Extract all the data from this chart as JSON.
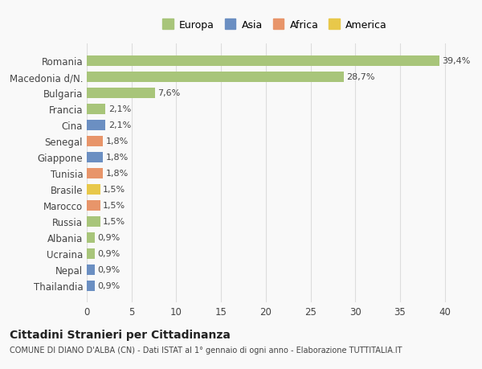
{
  "countries": [
    "Romania",
    "Macedonia d/N.",
    "Bulgaria",
    "Francia",
    "Cina",
    "Senegal",
    "Giappone",
    "Tunisia",
    "Brasile",
    "Marocco",
    "Russia",
    "Albania",
    "Ucraina",
    "Nepal",
    "Thailandia"
  ],
  "values": [
    39.4,
    28.7,
    7.6,
    2.1,
    2.1,
    1.8,
    1.8,
    1.8,
    1.5,
    1.5,
    1.5,
    0.9,
    0.9,
    0.9,
    0.9
  ],
  "labels": [
    "39,4%",
    "28,7%",
    "7,6%",
    "2,1%",
    "2,1%",
    "1,8%",
    "1,8%",
    "1,8%",
    "1,5%",
    "1,5%",
    "1,5%",
    "0,9%",
    "0,9%",
    "0,9%",
    "0,9%"
  ],
  "bar_colors": [
    "#a8c57a",
    "#a8c57a",
    "#a8c57a",
    "#a8c57a",
    "#6b8fc2",
    "#e8956a",
    "#6b8fc2",
    "#e8956a",
    "#e8c84a",
    "#e8956a",
    "#a8c57a",
    "#a8c57a",
    "#a8c57a",
    "#6b8fc2",
    "#6b8fc2"
  ],
  "continent_colors": {
    "Europa": "#a8c57a",
    "Asia": "#6b8fc2",
    "Africa": "#e8956a",
    "America": "#e8c84a"
  },
  "title": "Cittadini Stranieri per Cittadinanza",
  "subtitle": "COMUNE DI DIANO D'ALBA (CN) - Dati ISTAT al 1° gennaio di ogni anno - Elaborazione TUTTITALIA.IT",
  "xlim": [
    0,
    42
  ],
  "xticks": [
    0,
    5,
    10,
    15,
    20,
    25,
    30,
    35,
    40
  ],
  "background_color": "#f9f9f9",
  "grid_color": "#dddddd"
}
